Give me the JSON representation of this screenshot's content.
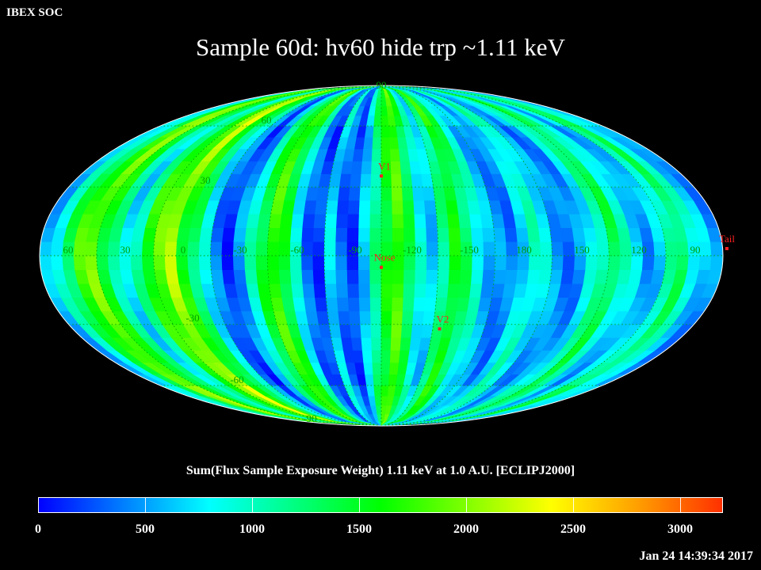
{
  "header": {
    "corner_label": "IBEX SOC",
    "title": "Sample 60d: hv60 hide trp ~1.11 keV"
  },
  "map": {
    "projection": "Mollweide (ecliptic)",
    "grid": true,
    "lat_labels": [
      {
        "text": "90",
        "lat": 90
      },
      {
        "text": "60",
        "lat": 60
      },
      {
        "text": "30",
        "lat": 30
      },
      {
        "text": "-30",
        "lat": -30
      },
      {
        "text": "-60",
        "lat": -60
      },
      {
        "text": "-90",
        "lat": -90
      }
    ],
    "lon_labels": [
      "60",
      "30",
      "0",
      "-30",
      "-60",
      "-90",
      "-120",
      "-150",
      "180",
      "150",
      "120",
      "90"
    ],
    "markers": [
      {
        "name": "V1",
        "lon": 255,
        "lat": 35
      },
      {
        "name": "Nose",
        "lon": 255,
        "lat": -5
      },
      {
        "name": "V2",
        "lon": 289,
        "lat": -32
      },
      {
        "name": "Tail",
        "lon": 75,
        "lat": 5
      }
    ],
    "marker_color": "#ff2020",
    "grid_color": "#00a000"
  },
  "colorbar": {
    "title": "Sum(Flux Sample Exposure Weight)  1.11 keV at 1.0 A.U. [ECLIPJ2000]",
    "min": 0,
    "max": 3200,
    "ticks": [
      "0",
      "500",
      "1000",
      "1500",
      "2000",
      "2500",
      "3000"
    ],
    "colors": [
      "#0000ff",
      "#0080ff",
      "#00ffff",
      "#00ff80",
      "#00ff00",
      "#80ff00",
      "#ffff00",
      "#ffa000",
      "#ff3000"
    ]
  },
  "footer": {
    "timestamp": "Jan 24 14:39:34 2017"
  }
}
